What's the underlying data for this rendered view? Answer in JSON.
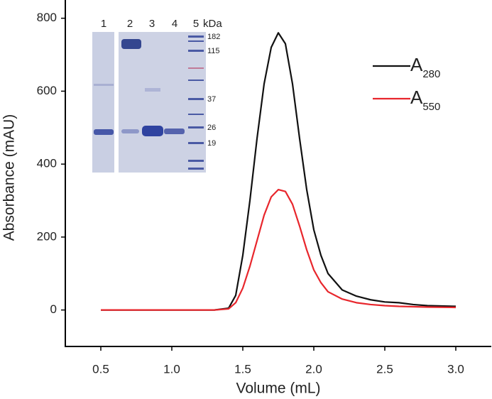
{
  "chart_data": {
    "type": "line",
    "x_label": "Volume (mL)",
    "y_label": "Absorbance (mAU)",
    "x": [
      0.5,
      1.0,
      1.3,
      1.4,
      1.45,
      1.5,
      1.55,
      1.6,
      1.65,
      1.7,
      1.75,
      1.8,
      1.85,
      1.9,
      1.95,
      2.0,
      2.05,
      2.1,
      2.2,
      2.3,
      2.4,
      2.5,
      2.6,
      2.7,
      2.8,
      3.0
    ],
    "series": [
      {
        "name": "A280",
        "color": "#111111",
        "values": [
          0,
          0,
          0,
          5,
          40,
          150,
          300,
          470,
          620,
          720,
          760,
          730,
          620,
          470,
          330,
          220,
          150,
          100,
          55,
          38,
          28,
          22,
          20,
          15,
          12,
          10
        ]
      },
      {
        "name": "A550",
        "color": "#e8262c",
        "values": [
          0,
          0,
          0,
          3,
          20,
          60,
          120,
          190,
          260,
          310,
          330,
          325,
          290,
          230,
          165,
          110,
          75,
          50,
          30,
          20,
          15,
          12,
          10,
          9,
          8,
          7
        ]
      }
    ],
    "xlim": [
      0.25,
      3.25
    ],
    "xticks": [
      0.5,
      1.0,
      1.5,
      2.0,
      2.5,
      3.0
    ],
    "ylim": [
      -100,
      850
    ],
    "yticks": [
      0,
      200,
      400,
      600,
      800
    ],
    "inset": {
      "lanes": [
        "1",
        "2",
        "3",
        "4",
        "5"
      ],
      "unit": "kDa",
      "markers": [
        "182",
        "115",
        "37",
        "26",
        "19"
      ]
    }
  }
}
